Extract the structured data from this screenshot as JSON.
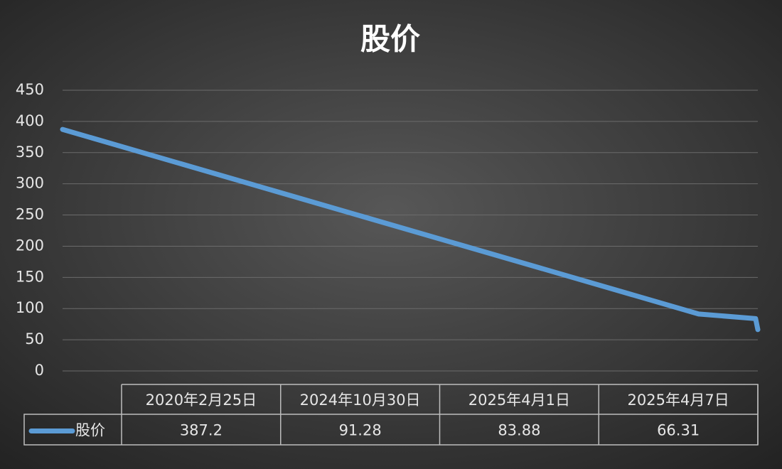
{
  "chart_data": {
    "type": "line",
    "title": "股价",
    "categories": [
      "2020年2月25日",
      "2024年10月30日",
      "2025年4月1日",
      "2025年4月7日"
    ],
    "series": [
      {
        "name": "股价",
        "color": "#5b9bd5",
        "values": [
          387.2,
          91.28,
          83.88,
          66.31
        ]
      }
    ],
    "ylim": [
      0,
      450
    ],
    "yticks": [
      0,
      50,
      100,
      150,
      200,
      250,
      300,
      350,
      400,
      450
    ],
    "grid": true
  }
}
